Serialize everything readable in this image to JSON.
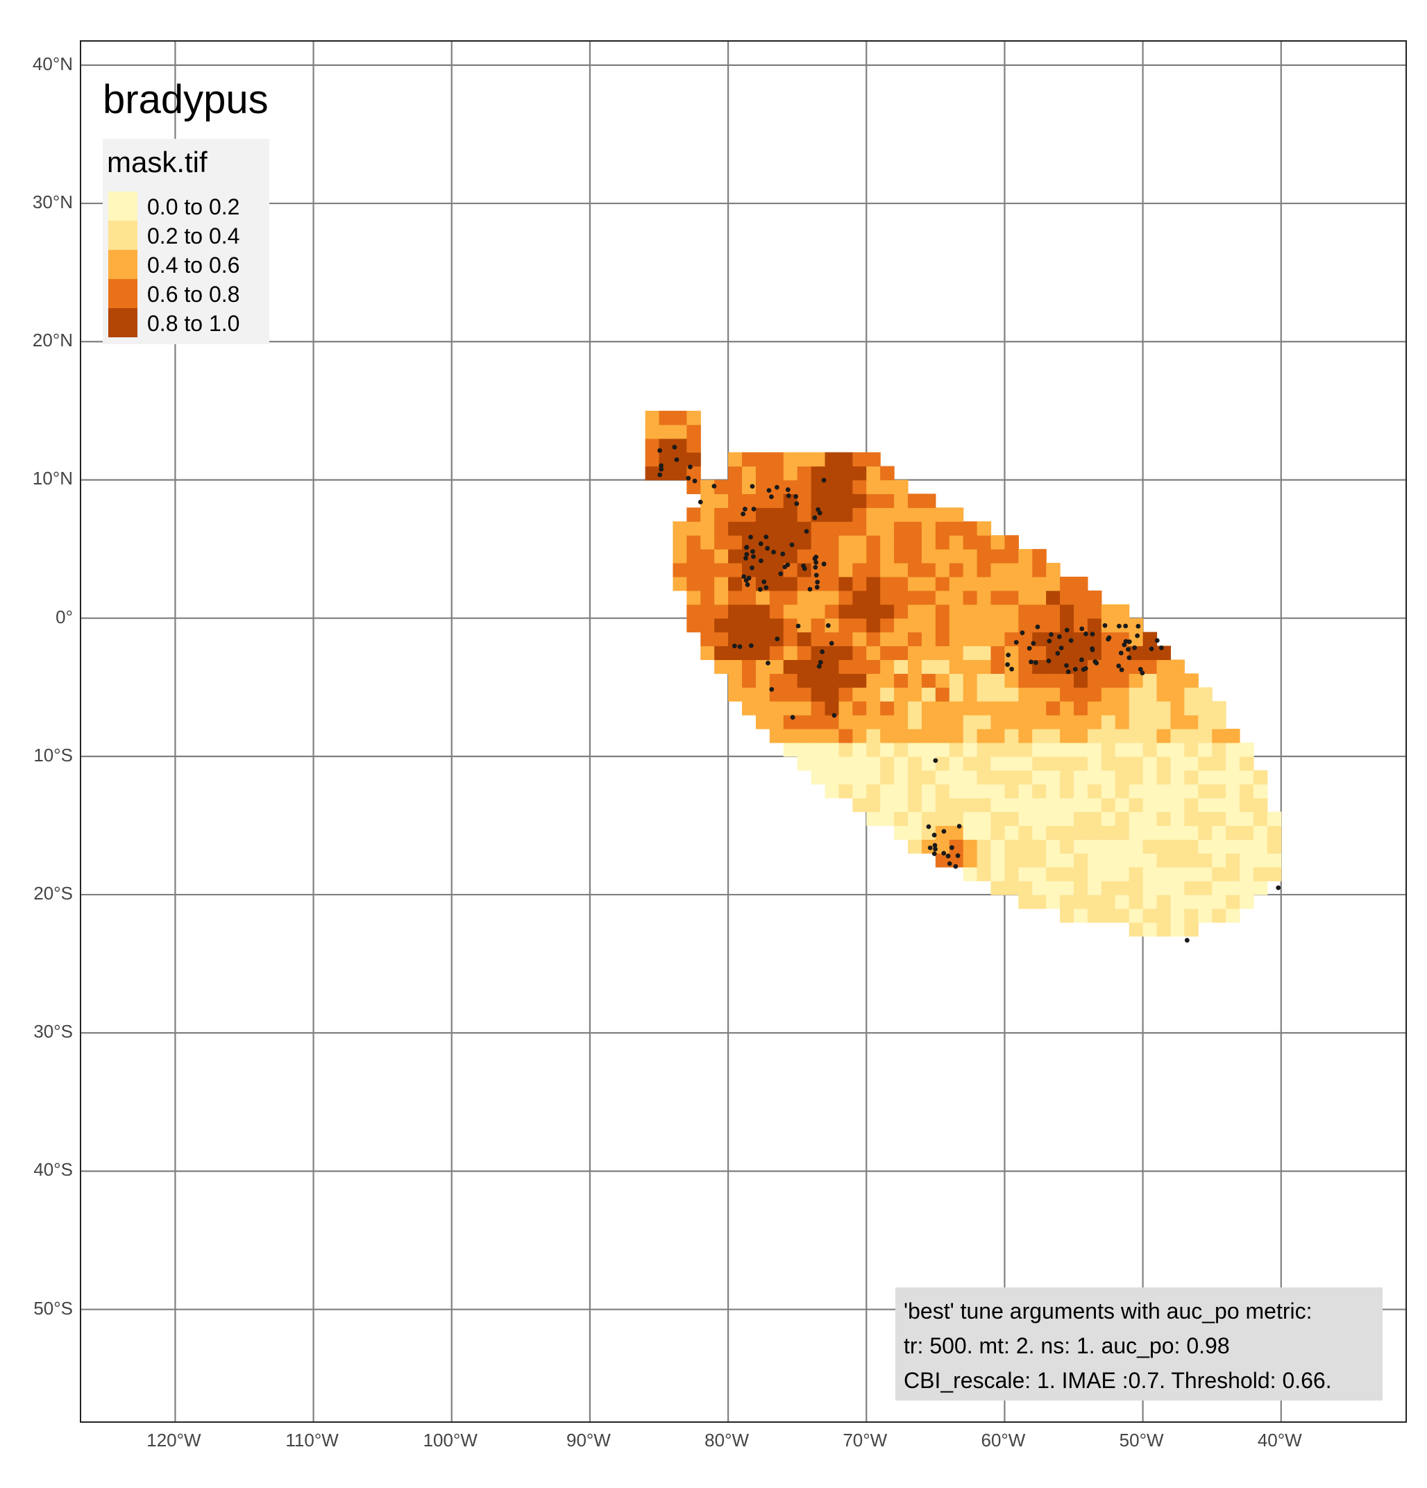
{
  "map": {
    "title": "bradypus",
    "legend": {
      "title": "mask.tif",
      "classes": [
        {
          "label": "0.0 to 0.2",
          "color": "#fff7bc"
        },
        {
          "label": "0.2 to 0.4",
          "color": "#fee391"
        },
        {
          "label": "0.4 to 0.6",
          "color": "#fdae3e"
        },
        {
          "label": "0.6 to 0.8",
          "color": "#e8711a"
        },
        {
          "label": "0.8 to 1.0",
          "color": "#b34604"
        }
      ]
    },
    "lon_ticks": [
      "120°W",
      "110°W",
      "100°W",
      "90°W",
      "80°W",
      "70°W",
      "60°W",
      "50°W",
      "40°W"
    ],
    "lat_ticks": [
      "40°N",
      "30°N",
      "20°N",
      "10°N",
      "0°",
      "10°S",
      "20°S",
      "30°S",
      "40°S",
      "50°S"
    ],
    "lon_range": [
      -126.8,
      -30.8
    ],
    "lat_range": [
      -58.3,
      41.7
    ],
    "gridline_color": "#7f7f7f",
    "point_color": "#1a1a1a",
    "info": {
      "lines": [
        "'best' tune arguments with auc_po metric:",
        "tr: 500. mt: 2. ns: 1. auc_po: 0.98",
        "CBI_rescale: 1. IMAE :0.7. Threshold: 0.66."
      ]
    }
  }
}
